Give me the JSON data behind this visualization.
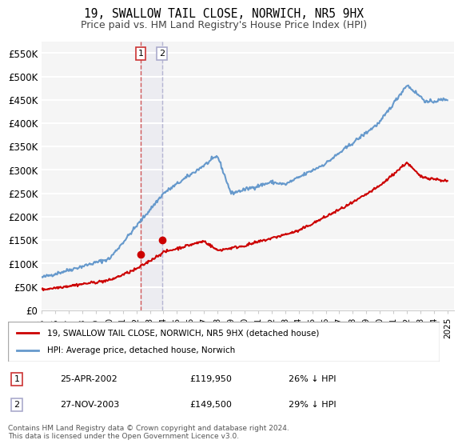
{
  "title": "19, SWALLOW TAIL CLOSE, NORWICH, NR5 9HX",
  "subtitle": "Price paid vs. HM Land Registry's House Price Index (HPI)",
  "ylabel_ticks": [
    "£0",
    "£50K",
    "£100K",
    "£150K",
    "£200K",
    "£250K",
    "£300K",
    "£350K",
    "£400K",
    "£450K",
    "£500K",
    "£550K"
  ],
  "ytick_values": [
    0,
    50000,
    100000,
    150000,
    200000,
    250000,
    300000,
    350000,
    400000,
    450000,
    500000,
    550000
  ],
  "ylim": [
    0,
    575000
  ],
  "xlim_start": 1995.0,
  "xlim_end": 2025.5,
  "sale1_x": 2002.31,
  "sale1_y": 119950,
  "sale1_label": "1",
  "sale1_date": "25-APR-2002",
  "sale1_price": "£119,950",
  "sale1_hpi": "26% ↓ HPI",
  "sale2_x": 2003.9,
  "sale2_y": 149500,
  "sale2_label": "2",
  "sale2_date": "27-NOV-2003",
  "sale2_price": "£149,500",
  "sale2_hpi": "29% ↓ HPI",
  "line_color_red": "#cc0000",
  "line_color_blue": "#6699cc",
  "vline_color1": "#cc3333",
  "vline_color2": "#aaaacc",
  "bg_color": "#f5f5f5",
  "grid_color": "#ffffff",
  "legend_label_red": "19, SWALLOW TAIL CLOSE, NORWICH, NR5 9HX (detached house)",
  "legend_label_blue": "HPI: Average price, detached house, Norwich",
  "footer": "Contains HM Land Registry data © Crown copyright and database right 2024.\nThis data is licensed under the Open Government Licence v3.0.",
  "xtick_years": [
    1995,
    1996,
    1997,
    1998,
    1999,
    2000,
    2001,
    2002,
    2003,
    2004,
    2005,
    2006,
    2007,
    2008,
    2009,
    2010,
    2011,
    2012,
    2013,
    2014,
    2015,
    2016,
    2017,
    2018,
    2019,
    2020,
    2021,
    2022,
    2023,
    2024,
    2025
  ]
}
